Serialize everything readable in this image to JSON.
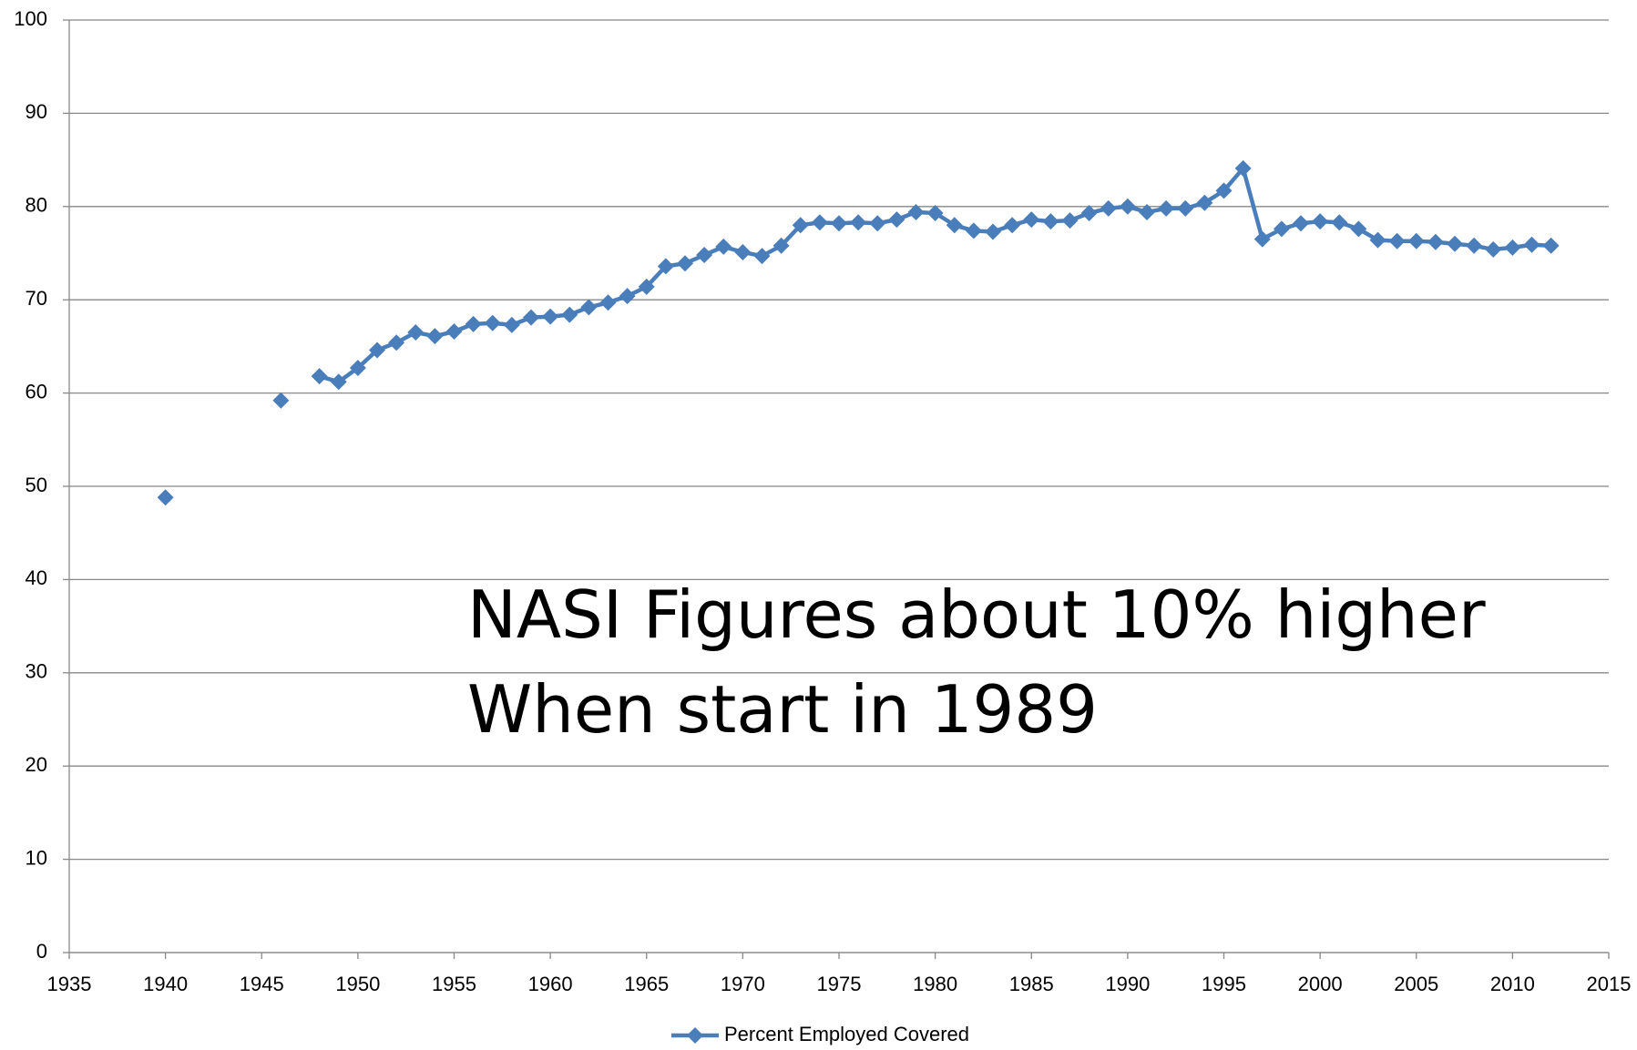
{
  "chart_data": {
    "type": "line",
    "annotations": [
      "NASI Figures about 10% higher",
      "When start in 1989"
    ],
    "x": [
      1940,
      1941,
      1942,
      1943,
      1944,
      1945,
      1946,
      1947,
      1948,
      1949,
      1950,
      1951,
      1952,
      1953,
      1954,
      1955,
      1956,
      1957,
      1958,
      1959,
      1960,
      1961,
      1962,
      1963,
      1964,
      1965,
      1966,
      1967,
      1968,
      1969,
      1970,
      1971,
      1972,
      1973,
      1974,
      1975,
      1976,
      1977,
      1978,
      1979,
      1980,
      1981,
      1982,
      1983,
      1984,
      1985,
      1986,
      1987,
      1988,
      1989,
      1990,
      1991,
      1992,
      1993,
      1994,
      1995,
      1996,
      1997,
      1998,
      1999,
      2000,
      2001,
      2002,
      2003,
      2004,
      2005,
      2006,
      2007,
      2008,
      2009,
      2010,
      2011,
      2012
    ],
    "series": [
      {
        "name": "Percent Employed Covered",
        "color": "#4a7ebb",
        "values": [
          48.8,
          null,
          null,
          null,
          null,
          null,
          59.2,
          null,
          61.8,
          61.2,
          62.7,
          64.6,
          65.4,
          66.5,
          66.1,
          66.6,
          67.4,
          67.5,
          67.3,
          68.1,
          68.2,
          68.4,
          69.2,
          69.7,
          70.4,
          71.4,
          73.6,
          73.9,
          74.8,
          75.7,
          75.1,
          74.7,
          75.8,
          78.0,
          78.3,
          78.2,
          78.3,
          78.2,
          78.6,
          79.4,
          79.3,
          78.0,
          77.4,
          77.3,
          78.0,
          78.6,
          78.4,
          78.5,
          79.3,
          79.8,
          80.0,
          79.4,
          79.8,
          79.8,
          80.4,
          81.7,
          84.1,
          76.5,
          77.6,
          78.2,
          78.4,
          78.3,
          77.6,
          76.4,
          76.3,
          76.3,
          76.2,
          76.0,
          75.8,
          75.4,
          75.6,
          75.9,
          75.8
        ]
      }
    ],
    "xlim": [
      1935,
      2015
    ],
    "xticks": [
      1935,
      1940,
      1945,
      1950,
      1955,
      1960,
      1965,
      1970,
      1975,
      1980,
      1985,
      1990,
      1995,
      2000,
      2005,
      2010,
      2015
    ],
    "ylim": [
      0,
      100
    ],
    "yticks": [
      0,
      10,
      20,
      30,
      40,
      50,
      60,
      70,
      80,
      90,
      100
    ],
    "grid": true,
    "legend": "bottom"
  }
}
